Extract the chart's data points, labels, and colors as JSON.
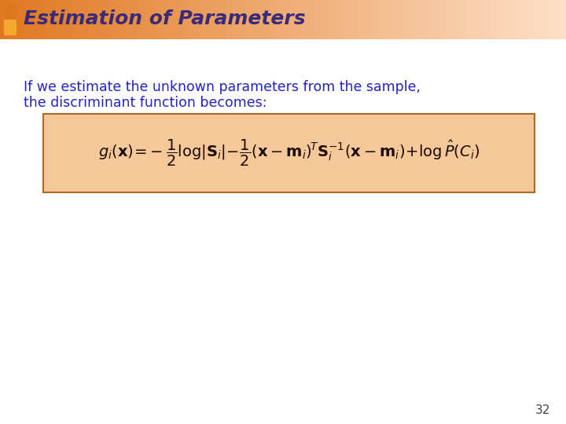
{
  "title": "Estimation of Parameters",
  "title_color": "#3a2a7a",
  "title_fontsize": 18,
  "body_text_line1": "If we estimate the unknown parameters from the sample,",
  "body_text_line2": "the discriminant function becomes:",
  "body_color": "#2222cc",
  "body_fontsize": 12.5,
  "formula_color": "#1a0a00",
  "formula_fontsize": 14,
  "formula_box_facecolor": "#f5c89a",
  "formula_box_edgecolor": "#b06820",
  "header_color_left": "#e07820",
  "header_color_right": "#fde0c8",
  "sq1_color": "#e07820",
  "sq2_color": "#f5a830",
  "page_number": "32",
  "page_number_color": "#444444",
  "page_number_fontsize": 11,
  "bg_color": "#ffffff"
}
